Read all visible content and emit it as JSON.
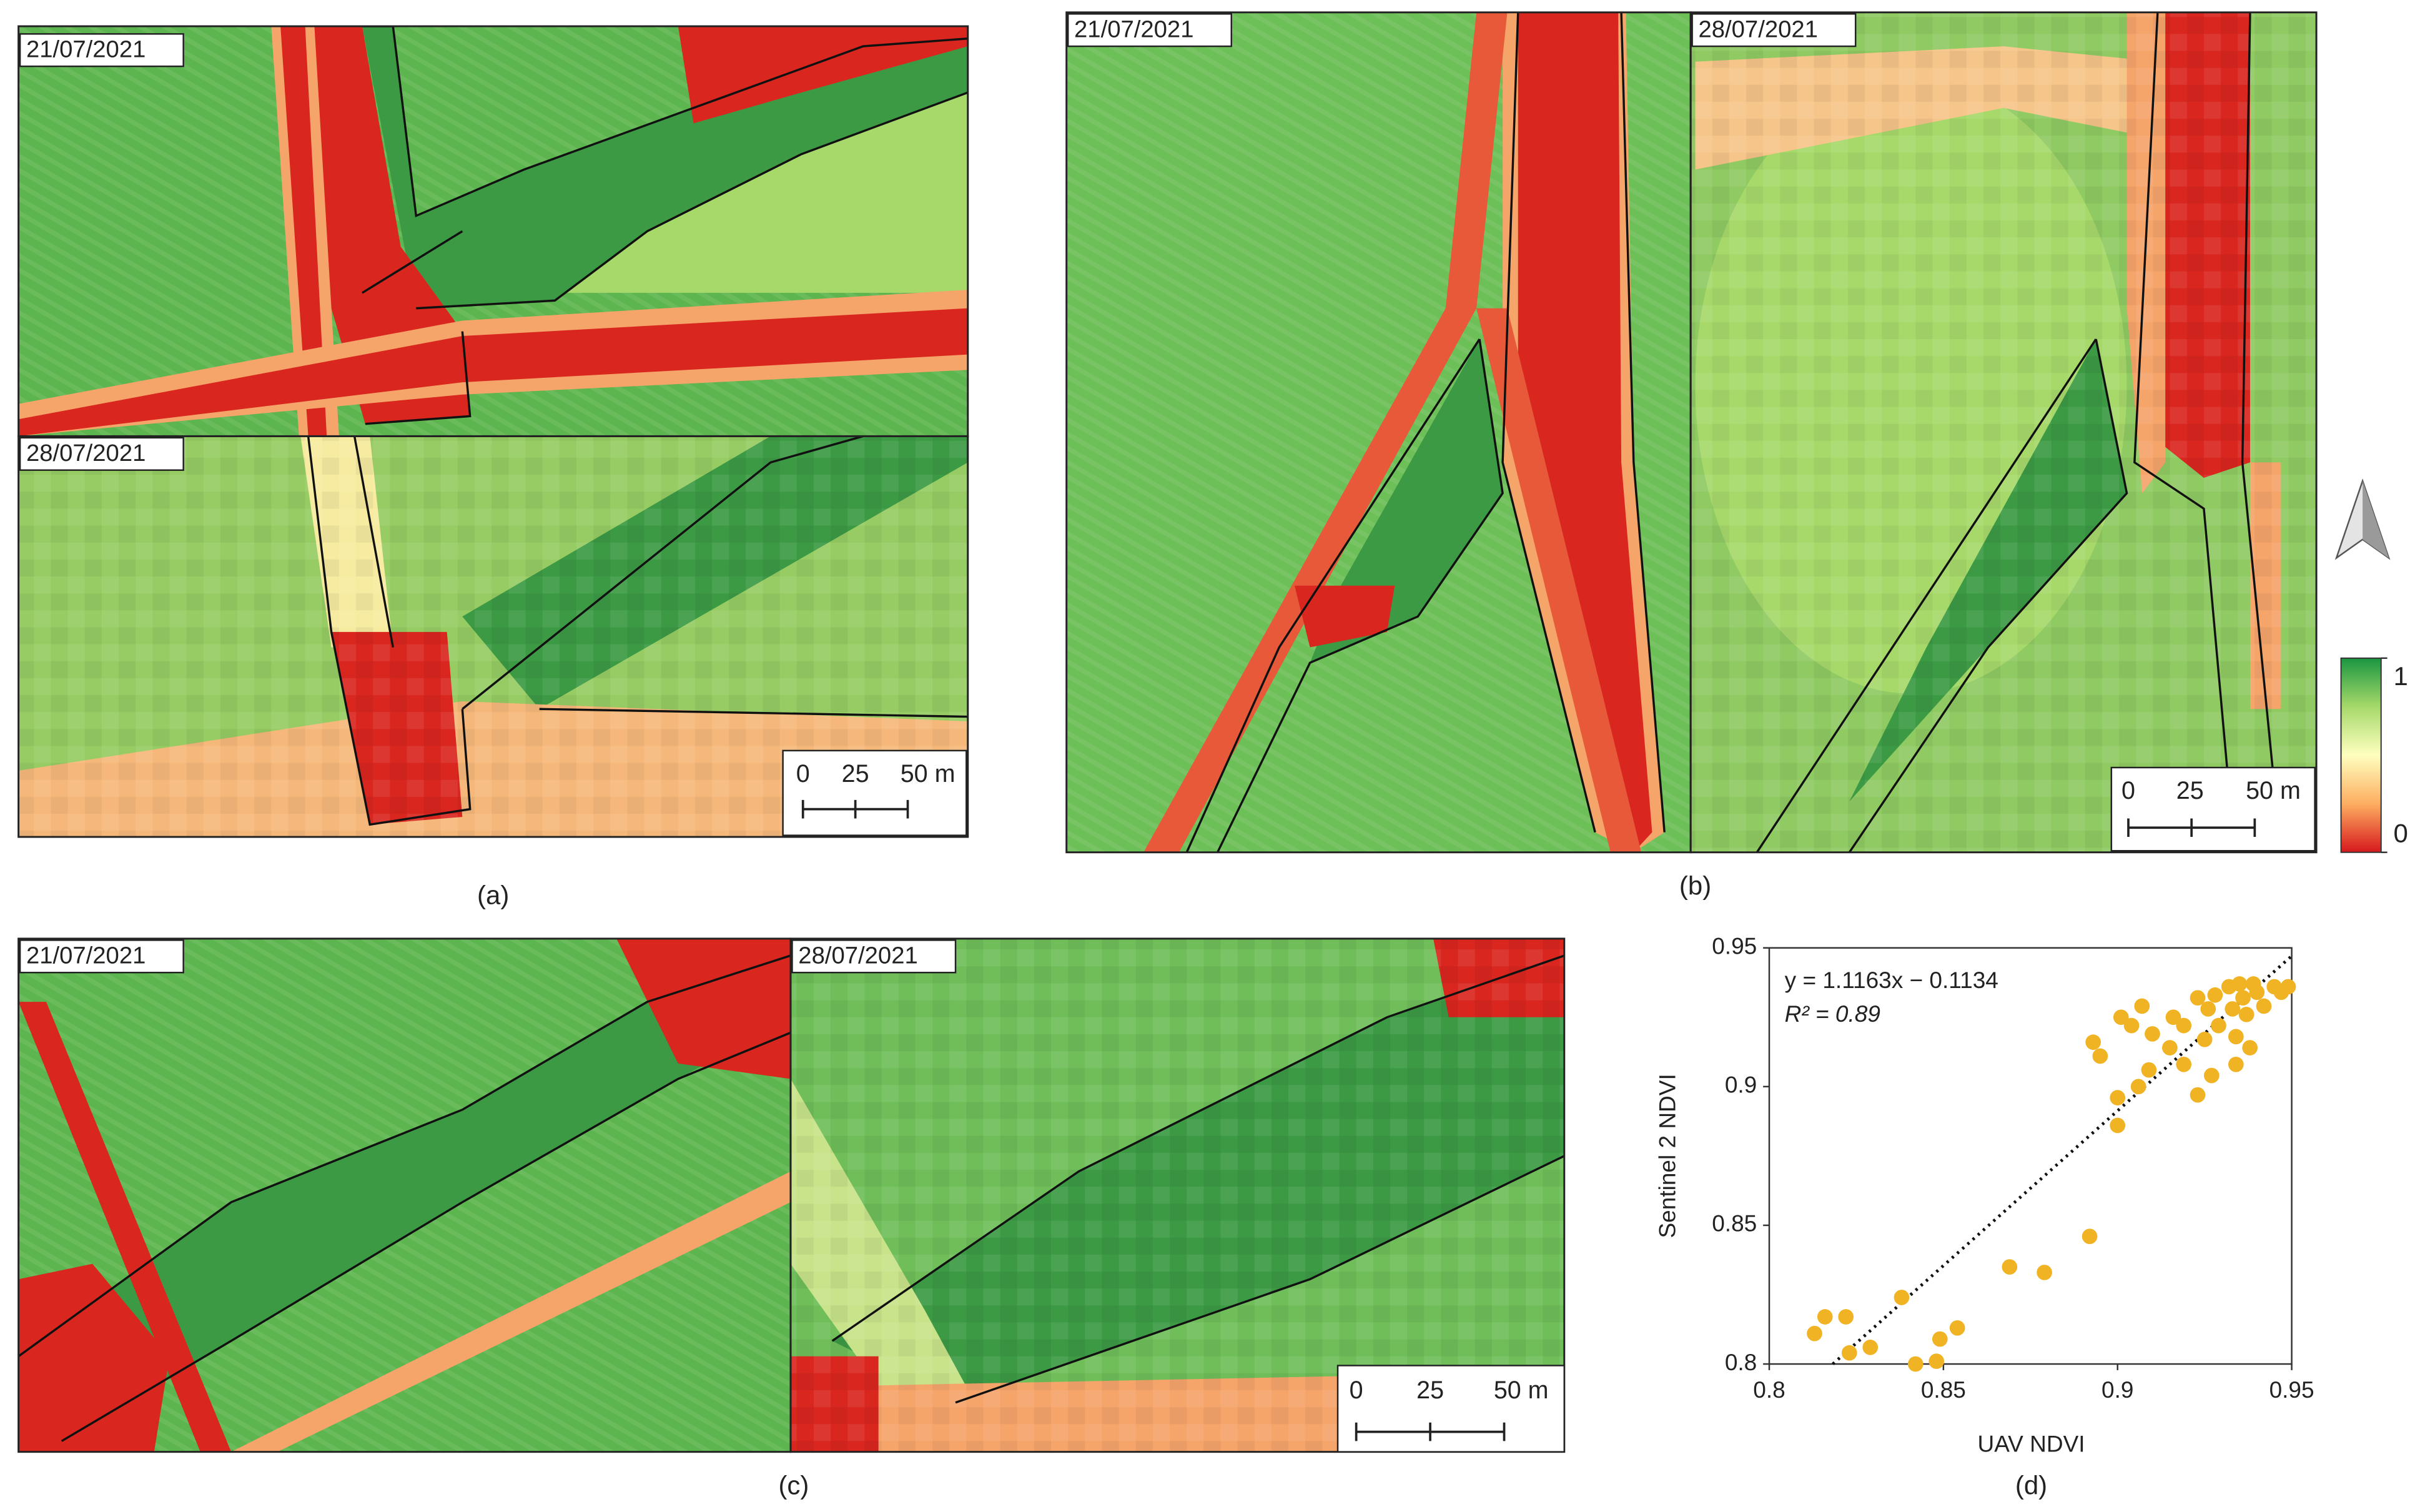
{
  "panels": {
    "a": {
      "dates": [
        "21/07/2021",
        "28/07/2021"
      ],
      "scale_bar": [
        "0",
        "25",
        "50 m"
      ],
      "caption": "(a)"
    },
    "b": {
      "dates": [
        "21/07/2021",
        "28/07/2021"
      ],
      "scale_bar": [
        "0",
        "25",
        "50 m"
      ],
      "caption": "(b)"
    },
    "c": {
      "dates": [
        "21/07/2021",
        "28/07/2021"
      ],
      "scale_bar": [
        "0",
        "25",
        "50 m"
      ],
      "caption": "(c)"
    }
  },
  "colorbar": {
    "lim": [
      0,
      1
    ],
    "ticks": [
      0,
      1
    ]
  },
  "chart_data": {
    "type": "scatter",
    "caption": "(d)",
    "xlabel": "UAV NDVI",
    "ylabel": "Sentinel 2 NDVI",
    "equation": "y = 1.1163x − 0.1134",
    "r2_label": "R² = 0.89",
    "trendline": {
      "slope": 1.1163,
      "intercept": -0.1134
    },
    "xlim": [
      0.8,
      0.95
    ],
    "ylim": [
      0.8,
      0.95
    ],
    "xticks": [
      0.8,
      0.85,
      0.9,
      0.95
    ],
    "yticks": [
      0.8,
      0.85,
      0.9,
      0.95
    ],
    "x": [
      0.813,
      0.816,
      0.822,
      0.823,
      0.829,
      0.838,
      0.842,
      0.849,
      0.848,
      0.854,
      0.869,
      0.879,
      0.892,
      0.893,
      0.895,
      0.9,
      0.9,
      0.901,
      0.904,
      0.906,
      0.909,
      0.907,
      0.91,
      0.915,
      0.916,
      0.919,
      0.919,
      0.923,
      0.923,
      0.925,
      0.926,
      0.927,
      0.928,
      0.929,
      0.932,
      0.933,
      0.934,
      0.935,
      0.936,
      0.937,
      0.938,
      0.939,
      0.94,
      0.942,
      0.945,
      0.947,
      0.949,
      0.934
    ],
    "series": [
      {
        "color": "#f0b323",
        "values": [
          0.811,
          0.817,
          0.817,
          0.804,
          0.806,
          0.824,
          0.8,
          0.809,
          0.801,
          0.813,
          0.835,
          0.833,
          0.846,
          0.916,
          0.911,
          0.886,
          0.896,
          0.925,
          0.922,
          0.9,
          0.906,
          0.929,
          0.919,
          0.914,
          0.925,
          0.908,
          0.922,
          0.897,
          0.932,
          0.917,
          0.928,
          0.904,
          0.933,
          0.922,
          0.936,
          0.928,
          0.918,
          0.937,
          0.932,
          0.926,
          0.914,
          0.937,
          0.934,
          0.929,
          0.936,
          0.934,
          0.936,
          0.908
        ]
      }
    ]
  }
}
